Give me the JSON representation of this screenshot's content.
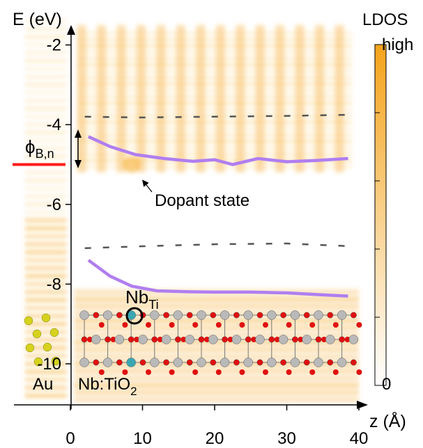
{
  "chart_data": {
    "type": "heatmap",
    "title": "",
    "xlabel": "z (Å)",
    "ylabel": "E (eV)",
    "xlim": [
      -4,
      40
    ],
    "ylim": [
      -11.3,
      -0.6
    ],
    "x_ticks": [
      {
        "value": 0,
        "label": "0"
      },
      {
        "value": 10,
        "label": "10"
      },
      {
        "value": 20,
        "label": "20"
      },
      {
        "value": 30,
        "label": "30"
      },
      {
        "value": 40,
        "label": "40"
      }
    ],
    "y_ticks": [
      {
        "value": -2,
        "label": "-2"
      },
      {
        "value": -4,
        "label": "-4"
      },
      {
        "value": -6,
        "label": "-6"
      },
      {
        "value": -8,
        "label": "-8"
      },
      {
        "value": -10,
        "label": "-10"
      }
    ],
    "colorbar": {
      "title": "LDOS",
      "max_label": "high",
      "min_label": "0",
      "color_high": "#f5a31a",
      "color_low": "#ffffff"
    },
    "series": [
      {
        "name": "",
        "style": "solid",
        "color": "#b07ef0",
        "x": [
          2.5,
          5.5,
          9,
          13,
          17,
          20,
          22.5,
          26,
          30,
          34,
          38.5
        ],
        "y": [
          -4.3,
          -4.55,
          -4.75,
          -4.85,
          -4.92,
          -4.88,
          -5.0,
          -4.85,
          -4.93,
          -4.9,
          -4.85
        ]
      },
      {
        "name": "",
        "style": "solid",
        "color": "#b07ef0",
        "x": [
          2.5,
          5.5,
          8.5,
          12,
          16,
          20,
          25,
          30,
          35,
          38.5
        ],
        "y": [
          -7.4,
          -7.8,
          -8.05,
          -8.17,
          -8.19,
          -8.2,
          -8.2,
          -8.22,
          -8.27,
          -8.3
        ]
      },
      {
        "name": "",
        "style": "dashed",
        "color": "#555555",
        "x": [
          2,
          10,
          20,
          30,
          39
        ],
        "y": [
          -3.8,
          -3.82,
          -3.8,
          -3.78,
          -3.75
        ]
      },
      {
        "name": "",
        "style": "dashed",
        "color": "#555555",
        "x": [
          2,
          10,
          20,
          30,
          39
        ],
        "y": [
          -7.1,
          -7.05,
          -7.0,
          -6.98,
          -7.05
        ]
      }
    ],
    "fermi_level": {
      "y": -5.0,
      "color": "#ff1a1a"
    },
    "annotations": {
      "barrier_symbol": "ϕ",
      "barrier_subscript": "B,n",
      "dopant_state": "Dopant state",
      "dopant_site_main": "Nb",
      "dopant_site_sub": "Ti",
      "metal": "Au",
      "oxide_main": "Nb:TiO",
      "oxide_sub": "2"
    },
    "grid": false
  }
}
